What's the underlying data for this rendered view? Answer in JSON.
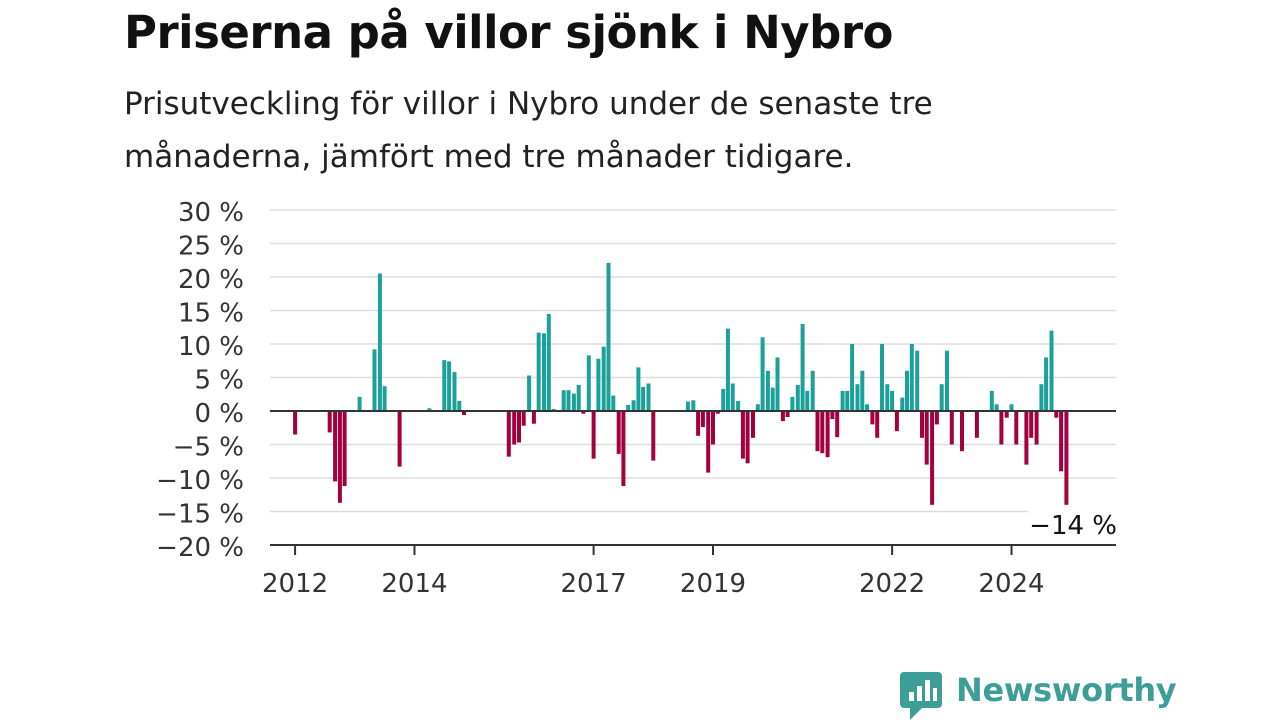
{
  "header": {
    "title": "Priserna på villor sjönk i Nybro",
    "subtitle": "Prisutveckling för villor i Nybro under de senaste tre månaderna, jämfört med tre månader tidigare."
  },
  "brand": {
    "name": "Newsworthy",
    "icon": "newsworthy-logo-icon",
    "color": "#3d9e98"
  },
  "chart_data": {
    "type": "bar",
    "title": "Priserna på villor sjönk i Nybro",
    "subtitle": "Prisutveckling för villor i Nybro under de senaste tre månaderna, jämfört med tre månader tidigare.",
    "xlabel": "",
    "ylabel": "",
    "ylim": [
      -20,
      30
    ],
    "y_ticks": [
      30,
      25,
      20,
      15,
      10,
      5,
      0,
      -5,
      -10,
      -15,
      -20
    ],
    "y_tick_labels": [
      "30 %",
      "25 %",
      "20 %",
      "15 %",
      "10 %",
      "5 %",
      "0 %",
      "−5 %",
      "−10 %",
      "−15 %",
      "−20 %"
    ],
    "x_ticks": [
      2012,
      2014,
      2017,
      2019,
      2022,
      2024
    ],
    "x_tick_labels": [
      "2012",
      "2014",
      "2017",
      "2019",
      "2022",
      "2024"
    ],
    "x_range": [
      2011.58,
      2025.75
    ],
    "grid": true,
    "colors": {
      "positive": "#1ba19a",
      "negative": "#a3003f",
      "grid": "#dddddd",
      "zero_line": "#333333",
      "axis_text": "#333333"
    },
    "annotation": {
      "text": "−14 %",
      "value": -14
    },
    "bars": [
      {
        "x": 2012.0,
        "v": -3.5
      },
      {
        "x": 2012.58,
        "v": -3.2
      },
      {
        "x": 2012.67,
        "v": -10.5
      },
      {
        "x": 2012.75,
        "v": -13.7
      },
      {
        "x": 2012.83,
        "v": -11.2
      },
      {
        "x": 2013.08,
        "v": 2.1
      },
      {
        "x": 2013.33,
        "v": 9.2
      },
      {
        "x": 2013.42,
        "v": 20.5
      },
      {
        "x": 2013.5,
        "v": 3.7
      },
      {
        "x": 2013.75,
        "v": -8.3
      },
      {
        "x": 2014.25,
        "v": 0.4
      },
      {
        "x": 2014.5,
        "v": 7.6
      },
      {
        "x": 2014.58,
        "v": 7.4
      },
      {
        "x": 2014.67,
        "v": 5.8
      },
      {
        "x": 2014.75,
        "v": 1.5
      },
      {
        "x": 2014.83,
        "v": -0.6
      },
      {
        "x": 2015.58,
        "v": -6.8
      },
      {
        "x": 2015.67,
        "v": -5.0
      },
      {
        "x": 2015.75,
        "v": -4.7
      },
      {
        "x": 2015.83,
        "v": -2.2
      },
      {
        "x": 2015.92,
        "v": 5.3
      },
      {
        "x": 2016.0,
        "v": -1.9
      },
      {
        "x": 2016.08,
        "v": 11.7
      },
      {
        "x": 2016.17,
        "v": 11.6
      },
      {
        "x": 2016.25,
        "v": 14.5
      },
      {
        "x": 2016.33,
        "v": 0.3
      },
      {
        "x": 2016.5,
        "v": 3.1
      },
      {
        "x": 2016.58,
        "v": 3.1
      },
      {
        "x": 2016.67,
        "v": 2.6
      },
      {
        "x": 2016.75,
        "v": 3.9
      },
      {
        "x": 2016.83,
        "v": -0.4
      },
      {
        "x": 2016.92,
        "v": 8.3
      },
      {
        "x": 2017.0,
        "v": -7.1
      },
      {
        "x": 2017.08,
        "v": 7.8
      },
      {
        "x": 2017.17,
        "v": 9.6
      },
      {
        "x": 2017.25,
        "v": 22.1
      },
      {
        "x": 2017.33,
        "v": 2.3
      },
      {
        "x": 2017.42,
        "v": -6.4
      },
      {
        "x": 2017.5,
        "v": -11.2
      },
      {
        "x": 2017.58,
        "v": 0.9
      },
      {
        "x": 2017.67,
        "v": 1.6
      },
      {
        "x": 2017.75,
        "v": 6.5
      },
      {
        "x": 2017.83,
        "v": 3.6
      },
      {
        "x": 2017.92,
        "v": 4.1
      },
      {
        "x": 2018.0,
        "v": -7.4
      },
      {
        "x": 2018.58,
        "v": 1.4
      },
      {
        "x": 2018.67,
        "v": 1.6
      },
      {
        "x": 2018.75,
        "v": -3.7
      },
      {
        "x": 2018.83,
        "v": -2.4
      },
      {
        "x": 2018.92,
        "v": -9.2
      },
      {
        "x": 2019.0,
        "v": -5.0
      },
      {
        "x": 2019.08,
        "v": -0.4
      },
      {
        "x": 2019.17,
        "v": 3.3
      },
      {
        "x": 2019.25,
        "v": 12.3
      },
      {
        "x": 2019.33,
        "v": 4.1
      },
      {
        "x": 2019.42,
        "v": 1.5
      },
      {
        "x": 2019.5,
        "v": -7.1
      },
      {
        "x": 2019.58,
        "v": -7.8
      },
      {
        "x": 2019.67,
        "v": -4.0
      },
      {
        "x": 2019.75,
        "v": 1.0
      },
      {
        "x": 2019.83,
        "v": 11.0
      },
      {
        "x": 2019.92,
        "v": 6.0
      },
      {
        "x": 2020.0,
        "v": 3.5
      },
      {
        "x": 2020.08,
        "v": 8.0
      },
      {
        "x": 2020.17,
        "v": -1.5
      },
      {
        "x": 2020.25,
        "v": -0.9
      },
      {
        "x": 2020.33,
        "v": 2.1
      },
      {
        "x": 2020.42,
        "v": 3.9
      },
      {
        "x": 2020.5,
        "v": 13.0
      },
      {
        "x": 2020.58,
        "v": 3.0
      },
      {
        "x": 2020.67,
        "v": 6.0
      },
      {
        "x": 2020.75,
        "v": -6.0
      },
      {
        "x": 2020.83,
        "v": -6.3
      },
      {
        "x": 2020.92,
        "v": -6.9
      },
      {
        "x": 2021.0,
        "v": -1.2
      },
      {
        "x": 2021.08,
        "v": -3.9
      },
      {
        "x": 2021.17,
        "v": 3.0
      },
      {
        "x": 2021.25,
        "v": 3.0
      },
      {
        "x": 2021.33,
        "v": 10.0
      },
      {
        "x": 2021.42,
        "v": 4.0
      },
      {
        "x": 2021.5,
        "v": 6.0
      },
      {
        "x": 2021.58,
        "v": 1.0
      },
      {
        "x": 2021.67,
        "v": -2.0
      },
      {
        "x": 2021.75,
        "v": -4.0
      },
      {
        "x": 2021.83,
        "v": 10.0
      },
      {
        "x": 2021.92,
        "v": 4.0
      },
      {
        "x": 2022.0,
        "v": 3.0
      },
      {
        "x": 2022.08,
        "v": -3.0
      },
      {
        "x": 2022.17,
        "v": 2.0
      },
      {
        "x": 2022.25,
        "v": 6.0
      },
      {
        "x": 2022.33,
        "v": 10.0
      },
      {
        "x": 2022.42,
        "v": 9.0
      },
      {
        "x": 2022.5,
        "v": -4.0
      },
      {
        "x": 2022.58,
        "v": -8.0
      },
      {
        "x": 2022.67,
        "v": -14.0
      },
      {
        "x": 2022.75,
        "v": -2.0
      },
      {
        "x": 2022.83,
        "v": 4.0
      },
      {
        "x": 2022.92,
        "v": 9.0
      },
      {
        "x": 2023.0,
        "v": -5.0
      },
      {
        "x": 2023.17,
        "v": -6.0
      },
      {
        "x": 2023.42,
        "v": -4.0
      },
      {
        "x": 2023.67,
        "v": 3.0
      },
      {
        "x": 2023.75,
        "v": 1.0
      },
      {
        "x": 2023.83,
        "v": -5.0
      },
      {
        "x": 2023.92,
        "v": -1.0
      },
      {
        "x": 2024.0,
        "v": 1.0
      },
      {
        "x": 2024.08,
        "v": -5.0
      },
      {
        "x": 2024.25,
        "v": -8.0
      },
      {
        "x": 2024.33,
        "v": -4.0
      },
      {
        "x": 2024.42,
        "v": -5.0
      },
      {
        "x": 2024.5,
        "v": 4.0
      },
      {
        "x": 2024.58,
        "v": 8.0
      },
      {
        "x": 2024.67,
        "v": 12.0
      },
      {
        "x": 2024.75,
        "v": -1.0
      },
      {
        "x": 2024.83,
        "v": -9.0
      },
      {
        "x": 2024.92,
        "v": -14.0
      }
    ]
  }
}
